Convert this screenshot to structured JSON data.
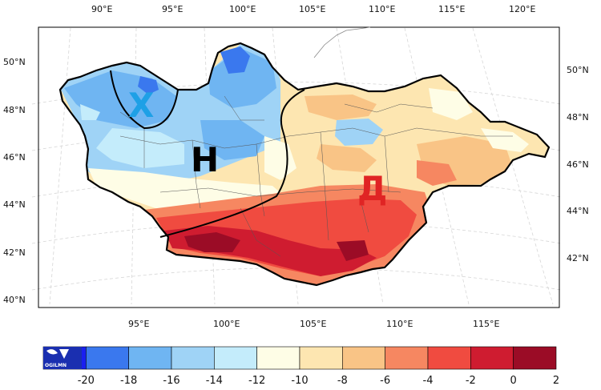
{
  "top_ticks": [
    "90°E",
    "95°E",
    "100°E",
    "105°E",
    "110°E",
    "115°E",
    "120°E"
  ],
  "bottom_ticks": [
    "95°E",
    "100°E",
    "105°E",
    "110°E",
    "115°E"
  ],
  "left_ticks": [
    "50°N",
    "48°N",
    "46°N",
    "44°N",
    "42°N",
    "40°N"
  ],
  "right_ticks": [
    "50°N",
    "48°N",
    "46°N",
    "44°N",
    "42°N"
  ],
  "zones": {
    "x": {
      "label": "Х",
      "color": "#1ea0e6"
    },
    "h": {
      "label": "Н",
      "color": "#000000"
    },
    "d": {
      "label": "Д",
      "color": "#e02424"
    }
  },
  "colorbar": {
    "labels": [
      "-20",
      "-18",
      "-16",
      "-14",
      "-12",
      "-10",
      "-8",
      "-6",
      "-4",
      "-2",
      "0",
      "2"
    ],
    "colors": [
      "#1a1ff0",
      "#3a78ee",
      "#6fb5f2",
      "#9fd3f6",
      "#c4ecfb",
      "#fefde6",
      "#fde6b1",
      "#f9c486",
      "#f68761",
      "#f04b40",
      "#cf1c30",
      "#9b0c26"
    ],
    "logo_text": "OGILMN"
  },
  "map_colors": {
    "background": "#ffffff",
    "outside": "#ffffff",
    "border": "#000000"
  }
}
